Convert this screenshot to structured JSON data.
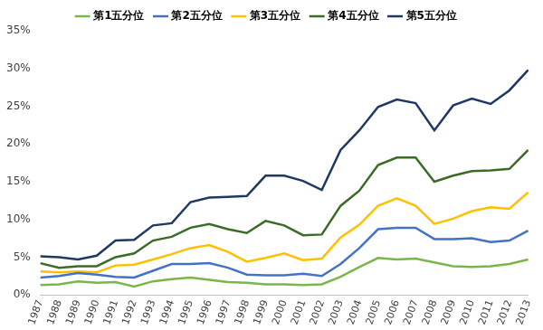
{
  "chart_data": {
    "type": "line",
    "categories": [
      "1987",
      "1988",
      "1989",
      "1990",
      "1991",
      "1992",
      "1993",
      "1994",
      "1995",
      "1996",
      "1997",
      "1998",
      "1999",
      "2000",
      "2001",
      "2002",
      "2003",
      "2004",
      "2005",
      "2006",
      "2007",
      "2008",
      "2009",
      "2010",
      "2011",
      "2012",
      "2013"
    ],
    "series": [
      {
        "name": "第1五分位",
        "color": "#7ab648",
        "values": [
          1.3,
          1.4,
          1.8,
          1.6,
          1.7,
          1.1,
          1.8,
          2.1,
          2.3,
          2.0,
          1.7,
          1.6,
          1.4,
          1.4,
          1.3,
          1.4,
          2.4,
          3.7,
          4.9,
          4.7,
          4.8,
          4.3,
          3.8,
          3.7,
          3.8,
          4.1,
          4.7
        ]
      },
      {
        "name": "第2五分位",
        "color": "#4472c4",
        "values": [
          2.3,
          2.5,
          2.9,
          2.7,
          2.4,
          2.3,
          3.2,
          4.1,
          4.1,
          4.2,
          3.6,
          2.7,
          2.6,
          2.6,
          2.8,
          2.5,
          4.1,
          6.2,
          8.7,
          8.9,
          8.9,
          7.4,
          7.4,
          7.5,
          7.0,
          7.2,
          8.5
        ]
      },
      {
        "name": "第3五分位",
        "color": "#ffc000",
        "values": [
          3.1,
          3.0,
          3.1,
          3.0,
          3.9,
          4.0,
          4.7,
          5.4,
          6.2,
          6.6,
          5.7,
          4.4,
          4.9,
          5.5,
          4.6,
          4.8,
          7.6,
          9.3,
          11.8,
          12.8,
          11.8,
          9.4,
          10.1,
          11.1,
          11.6,
          11.4,
          13.6
        ]
      },
      {
        "name": "第4五分位",
        "color": "#3b6b24",
        "values": [
          4.2,
          3.6,
          3.8,
          3.8,
          5.0,
          5.5,
          7.2,
          7.7,
          8.9,
          9.4,
          8.7,
          8.2,
          9.8,
          9.2,
          7.9,
          8.0,
          11.8,
          13.8,
          17.2,
          18.2,
          18.2,
          15.0,
          15.8,
          16.4,
          16.5,
          16.7,
          19.2
        ]
      },
      {
        "name": "第5五分位",
        "color": "#1f3864",
        "values": [
          5.1,
          5.0,
          4.7,
          5.2,
          7.2,
          7.3,
          9.2,
          9.5,
          12.3,
          12.9,
          13.0,
          13.1,
          15.8,
          15.8,
          15.1,
          13.9,
          19.2,
          21.8,
          24.9,
          25.9,
          25.4,
          21.8,
          25.1,
          26.0,
          25.3,
          27.1,
          29.8
        ]
      }
    ],
    "ylim": [
      0,
      35
    ],
    "yticks": [
      {
        "value": 0,
        "label": "0%"
      },
      {
        "value": 5,
        "label": "5%"
      },
      {
        "value": 10,
        "label": "10%"
      },
      {
        "value": 15,
        "label": "15%"
      },
      {
        "value": 20,
        "label": "20%"
      },
      {
        "value": 25,
        "label": "25%"
      },
      {
        "value": 30,
        "label": "30%"
      },
      {
        "value": 35,
        "label": "35%"
      }
    ],
    "grid": false,
    "legend": "top"
  }
}
